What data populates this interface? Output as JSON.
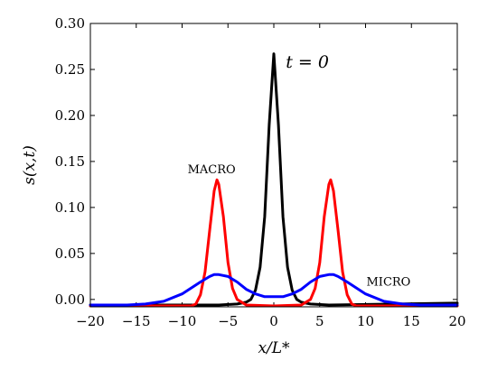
{
  "chart_data": {
    "type": "line",
    "xlabel": "x/L*",
    "ylabel": "s(x,t)",
    "xlim": [
      -20,
      20
    ],
    "ylim": [
      -0.008,
      0.3
    ],
    "xticks": [
      -20,
      -15,
      -10,
      -5,
      0,
      5,
      10,
      15,
      20
    ],
    "xtick_labels": [
      "−20",
      "−15",
      "−10",
      "−5",
      "0",
      "5",
      "10",
      "15",
      "20"
    ],
    "yticks": [
      0.0,
      0.05,
      0.1,
      0.15,
      0.2,
      0.25,
      0.3
    ],
    "ytick_labels": [
      "0.00",
      "0.05",
      "0.10",
      "0.15",
      "0.20",
      "0.25",
      "0.30"
    ],
    "grid": false,
    "series": [
      {
        "color": "#000000",
        "x": [
          -20,
          -6,
          -4,
          -3,
          -2.5,
          -2,
          -1.5,
          -1,
          -0.5,
          0,
          0.5,
          1,
          1.5,
          2,
          2.5,
          3,
          4,
          6,
          20
        ],
        "y": [
          -0.006,
          -0.006,
          -0.005,
          -0.003,
          0.0,
          0.01,
          0.035,
          0.09,
          0.19,
          0.267,
          0.19,
          0.09,
          0.035,
          0.01,
          0.0,
          -0.003,
          -0.005,
          -0.006,
          -0.004
        ]
      },
      {
        "color": "#ff0000",
        "x": [
          -20,
          -10,
          -9,
          -8.5,
          -8,
          -7.5,
          -7,
          -6.5,
          -6.2,
          -6,
          -5.5,
          -5,
          -4.5,
          -4,
          -3,
          0,
          3,
          4,
          4.5,
          5,
          5.5,
          6,
          6.2,
          6.5,
          7,
          7.5,
          8,
          8.5,
          9,
          10,
          13,
          20
        ],
        "y": [
          -0.007,
          -0.007,
          -0.007,
          -0.005,
          0.005,
          0.03,
          0.075,
          0.118,
          0.13,
          0.125,
          0.09,
          0.04,
          0.012,
          0.0,
          -0.006,
          -0.007,
          -0.006,
          0.0,
          0.012,
          0.04,
          0.09,
          0.125,
          0.13,
          0.118,
          0.075,
          0.03,
          0.005,
          -0.005,
          -0.007,
          -0.007,
          -0.007,
          -0.007
        ]
      },
      {
        "color": "#0000ff",
        "x": [
          -20,
          -16,
          -14,
          -12,
          -10,
          -8,
          -7,
          -6.5,
          -6,
          -5,
          -4,
          -3,
          -2,
          -1,
          0,
          1,
          2,
          3,
          4,
          5,
          6,
          6.5,
          7,
          8,
          10,
          12,
          14,
          16,
          20
        ],
        "y": [
          -0.006,
          -0.006,
          -0.005,
          -0.002,
          0.006,
          0.019,
          0.025,
          0.027,
          0.027,
          0.025,
          0.019,
          0.011,
          0.006,
          0.003,
          0.003,
          0.003,
          0.006,
          0.011,
          0.019,
          0.025,
          0.027,
          0.027,
          0.025,
          0.019,
          0.006,
          -0.002,
          -0.005,
          -0.006,
          -0.006
        ]
      }
    ],
    "annotations": [
      {
        "text": "t = 0",
        "x": 1.3,
        "y": 0.252,
        "style": "big"
      },
      {
        "text": "MACRO",
        "x": -9.4,
        "y": 0.137,
        "style": "small"
      },
      {
        "text": "MICRO",
        "x": 10.1,
        "y": 0.015,
        "style": "small"
      }
    ]
  }
}
